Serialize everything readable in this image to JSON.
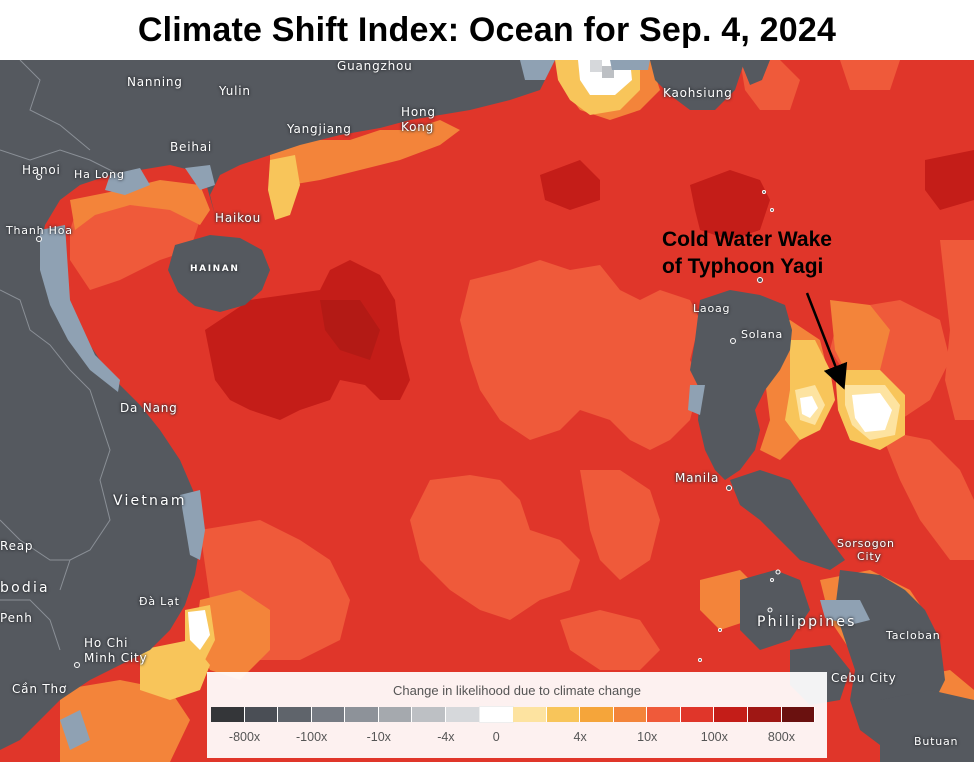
{
  "title": "Climate Shift Index: Ocean for Sep. 4, 2024",
  "annotation": {
    "line1": "Cold Water Wake",
    "line2": "of Typhoon Yagi"
  },
  "place_labels": {
    "guangzhou": "Guangzhou",
    "nanning": "Nanning",
    "yulin": "Yulin",
    "kaohsiung": "Kaohsiung",
    "hong_kong_1": "Hong",
    "hong_kong_2": "Kong",
    "yangjiang": "Yangjiang",
    "beihai": "Beihai",
    "hanoi": "Hanoi",
    "ha_long": "Ha Long",
    "haikou": "Haikou",
    "thanh_hoa": "Thanh Hoa",
    "hainan": "HAINAN",
    "laoag": "Laoag",
    "solana": "Solana",
    "da_nang": "Da Nang",
    "vietnam": "Vietnam",
    "manila": "Manila",
    "reap": "Reap",
    "sorsogon_1": "Sorsogon",
    "sorsogon_2": "City",
    "bodia": "bodia",
    "penh": "Penh",
    "da_lat": "Đà Lạt",
    "philippines": "Philippines",
    "ho_chi_1": "Ho Chi",
    "ho_chi_2": "Minh City",
    "tacloban": "Tacloban",
    "can_tho": "Cần Thơ",
    "cebu_city": "Cebu City",
    "butuan": "Butuan"
  },
  "legend": {
    "title": "Change in likelihood due to climate change",
    "colors": [
      "#343639",
      "#4a4e55",
      "#5f646b",
      "#767b83",
      "#8d9299",
      "#a5a9ae",
      "#bdc0c4",
      "#d6d8db",
      "#ffffff",
      "#fde3a0",
      "#f8c55a",
      "#f5a53a",
      "#f3843a",
      "#ef5a3a",
      "#e0362a",
      "#c41d18",
      "#9f1714",
      "#6a110f"
    ],
    "ticks": [
      "-800x",
      "-100x",
      "-10x",
      "-4x",
      "0",
      "4x",
      "10x",
      "100x",
      "800x"
    ]
  },
  "colors": {
    "land": "#55595f",
    "borders": "#8a8f96",
    "coast_gray": "#8fa1b3"
  }
}
